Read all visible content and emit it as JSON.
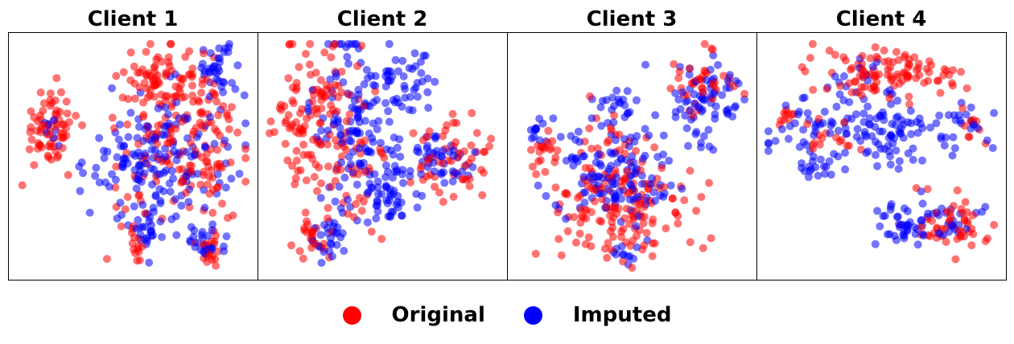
{
  "colors": {
    "original": "#ff0000",
    "imputed": "#0000ff"
  },
  "legend": [
    {
      "label": "Original",
      "color": "#ff0000"
    },
    {
      "label": "Imputed",
      "color": "#0000ff"
    }
  ],
  "chart_data": [
    {
      "type": "scatter",
      "title": "Client 1",
      "xlim": [
        0,
        100
      ],
      "ylim": [
        0,
        100
      ],
      "ticks": false,
      "series": [
        {
          "name": "Original",
          "color": "#ff0000",
          "clusters": [
            {
              "cx": 14,
              "cy": 62,
              "sx": 6,
              "sy": 9,
              "n": 70
            },
            {
              "cx": 62,
              "cy": 83,
              "sx": 8,
              "sy": 8,
              "n": 70
            },
            {
              "cx": 78,
              "cy": 72,
              "sx": 7,
              "sy": 9,
              "n": 50
            },
            {
              "cx": 70,
              "cy": 45,
              "sx": 16,
              "sy": 14,
              "n": 110
            },
            {
              "cx": 85,
              "cy": 10,
              "sx": 5,
              "sy": 4,
              "n": 20
            },
            {
              "cx": 52,
              "cy": 10,
              "sx": 3,
              "sy": 4,
              "n": 12
            }
          ]
        },
        {
          "name": "Imputed",
          "color": "#0000ff",
          "clusters": [
            {
              "cx": 87,
              "cy": 89,
              "sx": 4,
              "sy": 5,
              "n": 35
            },
            {
              "cx": 48,
              "cy": 48,
              "sx": 9,
              "sy": 10,
              "n": 55
            },
            {
              "cx": 68,
              "cy": 50,
              "sx": 14,
              "sy": 16,
              "n": 110
            },
            {
              "cx": 55,
              "cy": 18,
              "sx": 4,
              "sy": 5,
              "n": 25
            },
            {
              "cx": 81,
              "cy": 12,
              "sx": 4,
              "sy": 4,
              "n": 25
            },
            {
              "cx": 15,
              "cy": 60,
              "sx": 3,
              "sy": 5,
              "n": 8
            }
          ]
        }
      ]
    },
    {
      "type": "scatter",
      "title": "Client 2",
      "xlim": [
        0,
        100
      ],
      "ylim": [
        0,
        100
      ],
      "ticks": false,
      "series": [
        {
          "name": "Original",
          "color": "#ff0000",
          "clusters": [
            {
              "cx": 23,
              "cy": 65,
              "sx": 10,
              "sy": 20,
              "n": 110
            },
            {
              "cx": 82,
              "cy": 48,
              "sx": 8,
              "sy": 10,
              "n": 55
            },
            {
              "cx": 22,
              "cy": 15,
              "sx": 5,
              "sy": 6,
              "n": 25
            },
            {
              "cx": 9,
              "cy": 65,
              "sx": 3,
              "sy": 4,
              "n": 15
            },
            {
              "cx": 40,
              "cy": 45,
              "sx": 6,
              "sy": 15,
              "n": 30
            }
          ]
        },
        {
          "name": "Imputed",
          "color": "#0000ff",
          "clusters": [
            {
              "cx": 38,
              "cy": 62,
              "sx": 9,
              "sy": 22,
              "n": 130
            },
            {
              "cx": 58,
              "cy": 80,
              "sx": 8,
              "sy": 7,
              "n": 45
            },
            {
              "cx": 53,
              "cy": 33,
              "sx": 6,
              "sy": 7,
              "n": 50
            },
            {
              "cx": 27,
              "cy": 14,
              "sx": 5,
              "sy": 4,
              "n": 25
            },
            {
              "cx": 73,
              "cy": 52,
              "sx": 5,
              "sy": 5,
              "n": 30
            },
            {
              "cx": 85,
              "cy": 45,
              "sx": 4,
              "sy": 6,
              "n": 15
            }
          ]
        }
      ]
    },
    {
      "type": "scatter",
      "title": "Client 3",
      "xlim": [
        0,
        100
      ],
      "ylim": [
        0,
        100
      ],
      "ticks": false,
      "series": [
        {
          "name": "Original",
          "color": "#ff0000",
          "clusters": [
            {
              "cx": 44,
              "cy": 25,
              "sx": 14,
              "sy": 11,
              "n": 140
            },
            {
              "cx": 80,
              "cy": 80,
              "sx": 7,
              "sy": 9,
              "n": 40
            },
            {
              "cx": 12,
              "cy": 52,
              "sx": 4,
              "sy": 6,
              "n": 20
            },
            {
              "cx": 40,
              "cy": 55,
              "sx": 8,
              "sy": 10,
              "n": 30
            }
          ]
        },
        {
          "name": "Imputed",
          "color": "#0000ff",
          "clusters": [
            {
              "cx": 42,
              "cy": 40,
              "sx": 14,
              "sy": 14,
              "n": 130
            },
            {
              "cx": 82,
              "cy": 74,
              "sx": 8,
              "sy": 9,
              "n": 70
            },
            {
              "cx": 8,
              "cy": 62,
              "sx": 3,
              "sy": 3,
              "n": 12
            },
            {
              "cx": 42,
              "cy": 72,
              "sx": 5,
              "sy": 4,
              "n": 20
            },
            {
              "cx": 46,
              "cy": 8,
              "sx": 3,
              "sy": 3,
              "n": 10
            }
          ]
        }
      ]
    },
    {
      "type": "scatter",
      "title": "Client 4",
      "xlim": [
        0,
        100
      ],
      "ylim": [
        0,
        100
      ],
      "ticks": false,
      "series": [
        {
          "name": "Original",
          "color": "#ff0000",
          "clusters": [
            {
              "cx": 52,
              "cy": 85,
              "sx": 16,
              "sy": 6,
              "n": 100
            },
            {
              "cx": 80,
              "cy": 20,
              "sx": 8,
              "sy": 6,
              "n": 50
            },
            {
              "cx": 8,
              "cy": 67,
              "sx": 3,
              "sy": 2,
              "n": 10
            },
            {
              "cx": 80,
              "cy": 88,
              "sx": 2,
              "sy": 2,
              "n": 5
            },
            {
              "cx": 88,
              "cy": 65,
              "sx": 3,
              "sy": 4,
              "n": 10
            },
            {
              "cx": 30,
              "cy": 58,
              "sx": 8,
              "sy": 6,
              "n": 15
            }
          ]
        },
        {
          "name": "Imputed",
          "color": "#0000ff",
          "clusters": [
            {
              "cx": 45,
              "cy": 62,
              "sx": 22,
              "sy": 8,
              "n": 140
            },
            {
              "cx": 62,
              "cy": 20,
              "sx": 7,
              "sy": 5,
              "n": 45
            },
            {
              "cx": 88,
              "cy": 63,
              "sx": 4,
              "sy": 5,
              "n": 12
            },
            {
              "cx": 22,
              "cy": 45,
              "sx": 5,
              "sy": 3,
              "n": 15
            },
            {
              "cx": 80,
              "cy": 22,
              "sx": 6,
              "sy": 4,
              "n": 20
            },
            {
              "cx": 40,
              "cy": 84,
              "sx": 8,
              "sy": 4,
              "n": 12
            }
          ]
        }
      ]
    }
  ]
}
